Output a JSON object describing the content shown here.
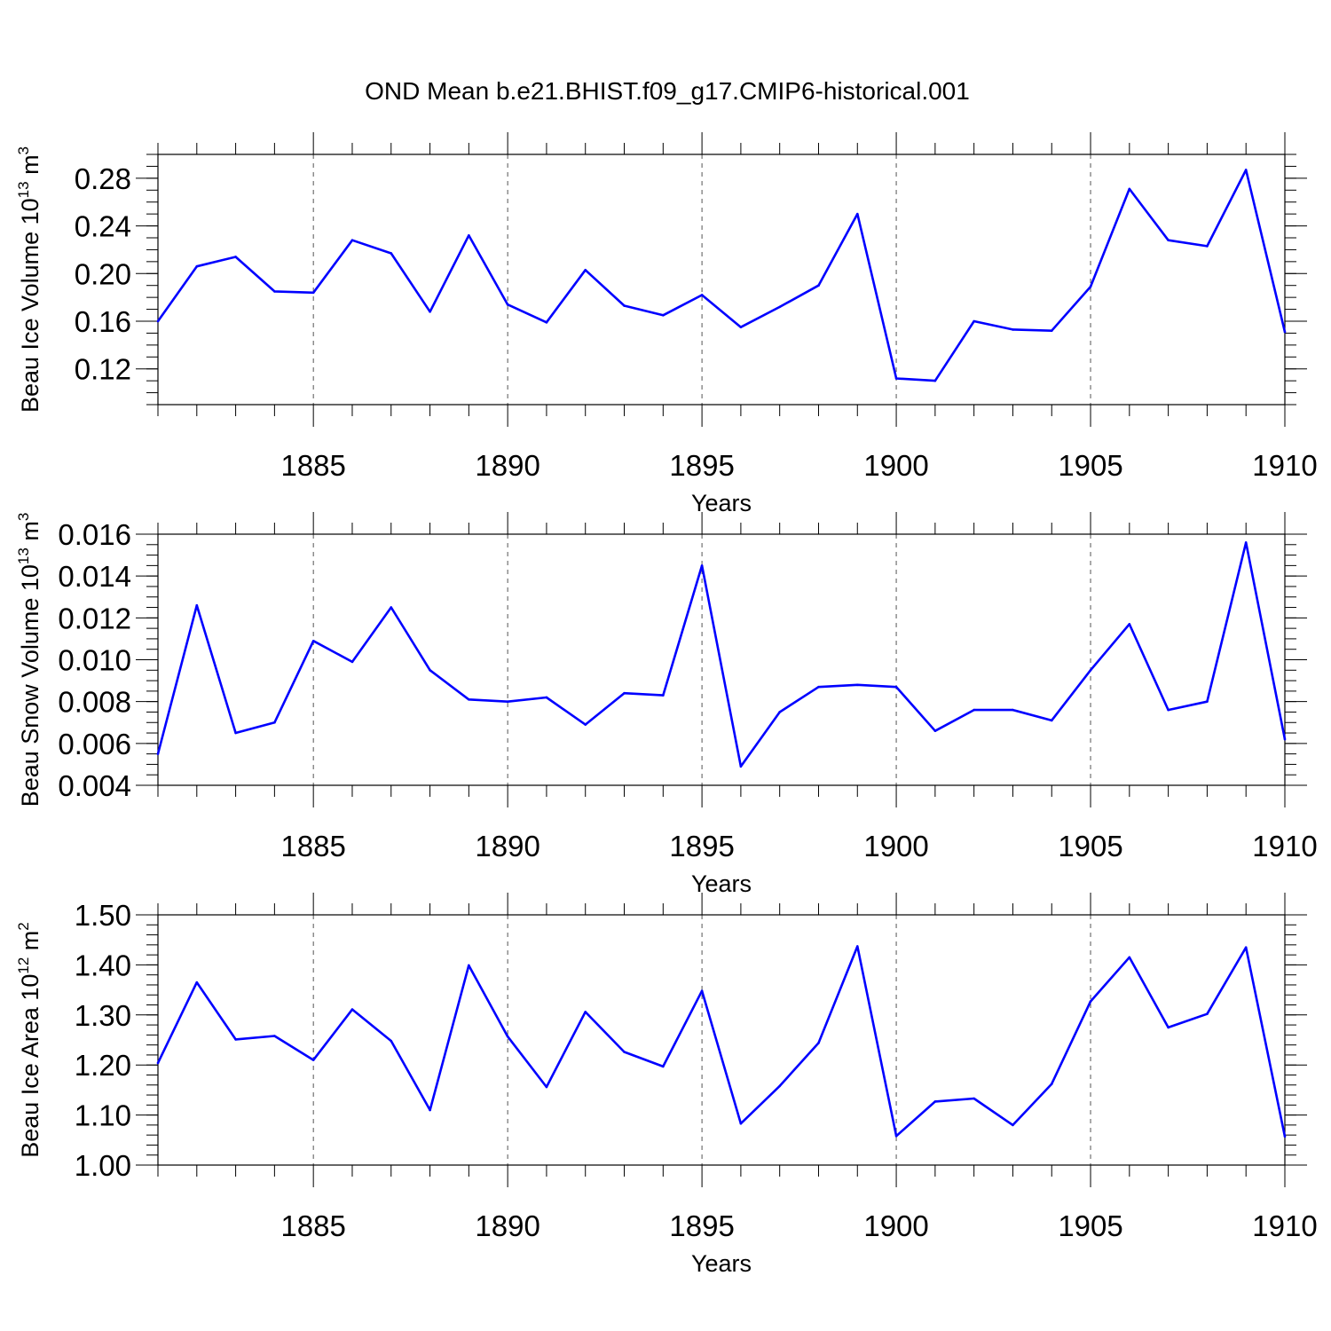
{
  "title": "OND Mean b.e21.BHIST.f09_g17.CMIP6-historical.001",
  "chart_data": [
    {
      "type": "line",
      "ylabel": "Beau Ice Volume 10",
      "ylabel_exp": "13",
      "ylabel_unit": " m",
      "ylabel_unit_exp": "3",
      "xlabel": "Years",
      "xlim": [
        1881,
        1910
      ],
      "ylim": [
        0.09,
        0.3
      ],
      "yticks": [
        0.12,
        0.16,
        0.2,
        0.24,
        0.28
      ],
      "ytick_labels": [
        "0.12",
        "0.16",
        "0.20",
        "0.24",
        "0.28"
      ],
      "yminor_step": 0.01,
      "xticks": [
        1885,
        1890,
        1895,
        1900,
        1905,
        1910
      ],
      "xtick_labels": [
        "1885",
        "1890",
        "1895",
        "1900",
        "1905",
        "1910"
      ],
      "color": "#0000ff",
      "grid": "dashed vertical at major x ticks",
      "x": [
        1881,
        1882,
        1883,
        1884,
        1885,
        1886,
        1887,
        1888,
        1889,
        1890,
        1891,
        1892,
        1893,
        1894,
        1895,
        1896,
        1897,
        1898,
        1899,
        1900,
        1901,
        1902,
        1903,
        1904,
        1905,
        1906,
        1907,
        1908,
        1909,
        1910
      ],
      "values": [
        0.16,
        0.206,
        0.214,
        0.185,
        0.184,
        0.228,
        0.217,
        0.168,
        0.232,
        0.174,
        0.159,
        0.203,
        0.173,
        0.165,
        0.182,
        0.155,
        0.172,
        0.19,
        0.25,
        0.112,
        0.11,
        0.16,
        0.153,
        0.152,
        0.189,
        0.271,
        0.228,
        0.223,
        0.287,
        0.151
      ]
    },
    {
      "type": "line",
      "ylabel": "Beau Snow Volume 10",
      "ylabel_exp": "13",
      "ylabel_unit": " m",
      "ylabel_unit_exp": "3",
      "xlabel": "Years",
      "xlim": [
        1881,
        1910
      ],
      "ylim": [
        0.004,
        0.016
      ],
      "yticks": [
        0.004,
        0.006,
        0.008,
        0.01,
        0.012,
        0.014,
        0.016
      ],
      "ytick_labels": [
        "0.004",
        "0.006",
        "0.008",
        "0.010",
        "0.012",
        "0.014",
        "0.016"
      ],
      "yminor_step": 0.0005,
      "xticks": [
        1885,
        1890,
        1895,
        1900,
        1905,
        1910
      ],
      "xtick_labels": [
        "1885",
        "1890",
        "1895",
        "1900",
        "1905",
        "1910"
      ],
      "color": "#0000ff",
      "grid": "dashed vertical at major x ticks",
      "x": [
        1881,
        1882,
        1883,
        1884,
        1885,
        1886,
        1887,
        1888,
        1889,
        1890,
        1891,
        1892,
        1893,
        1894,
        1895,
        1896,
        1897,
        1898,
        1899,
        1900,
        1901,
        1902,
        1903,
        1904,
        1905,
        1906,
        1907,
        1908,
        1909,
        1910
      ],
      "values": [
        0.0055,
        0.0126,
        0.0065,
        0.007,
        0.0109,
        0.0099,
        0.0125,
        0.0095,
        0.0081,
        0.008,
        0.0082,
        0.0069,
        0.0084,
        0.0083,
        0.0145,
        0.0049,
        0.0075,
        0.0087,
        0.0088,
        0.0087,
        0.0066,
        0.0076,
        0.0076,
        0.0071,
        0.0095,
        0.0117,
        0.0076,
        0.008,
        0.0156,
        0.0062
      ]
    },
    {
      "type": "line",
      "ylabel": "Beau Ice Area 10",
      "ylabel_exp": "12",
      "ylabel_unit": " m",
      "ylabel_unit_exp": "2",
      "xlabel": "Years",
      "xlim": [
        1881,
        1910
      ],
      "ylim": [
        1.0,
        1.5
      ],
      "yticks": [
        1.0,
        1.1,
        1.2,
        1.3,
        1.4,
        1.5
      ],
      "ytick_labels": [
        "1.00",
        "1.10",
        "1.20",
        "1.30",
        "1.40",
        "1.50"
      ],
      "yminor_step": 0.02,
      "xticks": [
        1885,
        1890,
        1895,
        1900,
        1905,
        1910
      ],
      "xtick_labels": [
        "1885",
        "1890",
        "1895",
        "1900",
        "1905",
        "1910"
      ],
      "color": "#0000ff",
      "grid": "dashed vertical at major x ticks",
      "x": [
        1881,
        1882,
        1883,
        1884,
        1885,
        1886,
        1887,
        1888,
        1889,
        1890,
        1891,
        1892,
        1893,
        1894,
        1895,
        1896,
        1897,
        1898,
        1899,
        1900,
        1901,
        1902,
        1903,
        1904,
        1905,
        1906,
        1907,
        1908,
        1909,
        1910
      ],
      "values": [
        1.204,
        1.365,
        1.251,
        1.258,
        1.21,
        1.311,
        1.248,
        1.11,
        1.399,
        1.257,
        1.156,
        1.306,
        1.226,
        1.197,
        1.348,
        1.083,
        1.158,
        1.244,
        1.437,
        1.058,
        1.127,
        1.133,
        1.08,
        1.162,
        1.327,
        1.415,
        1.275,
        1.302,
        1.435,
        1.057
      ]
    }
  ]
}
